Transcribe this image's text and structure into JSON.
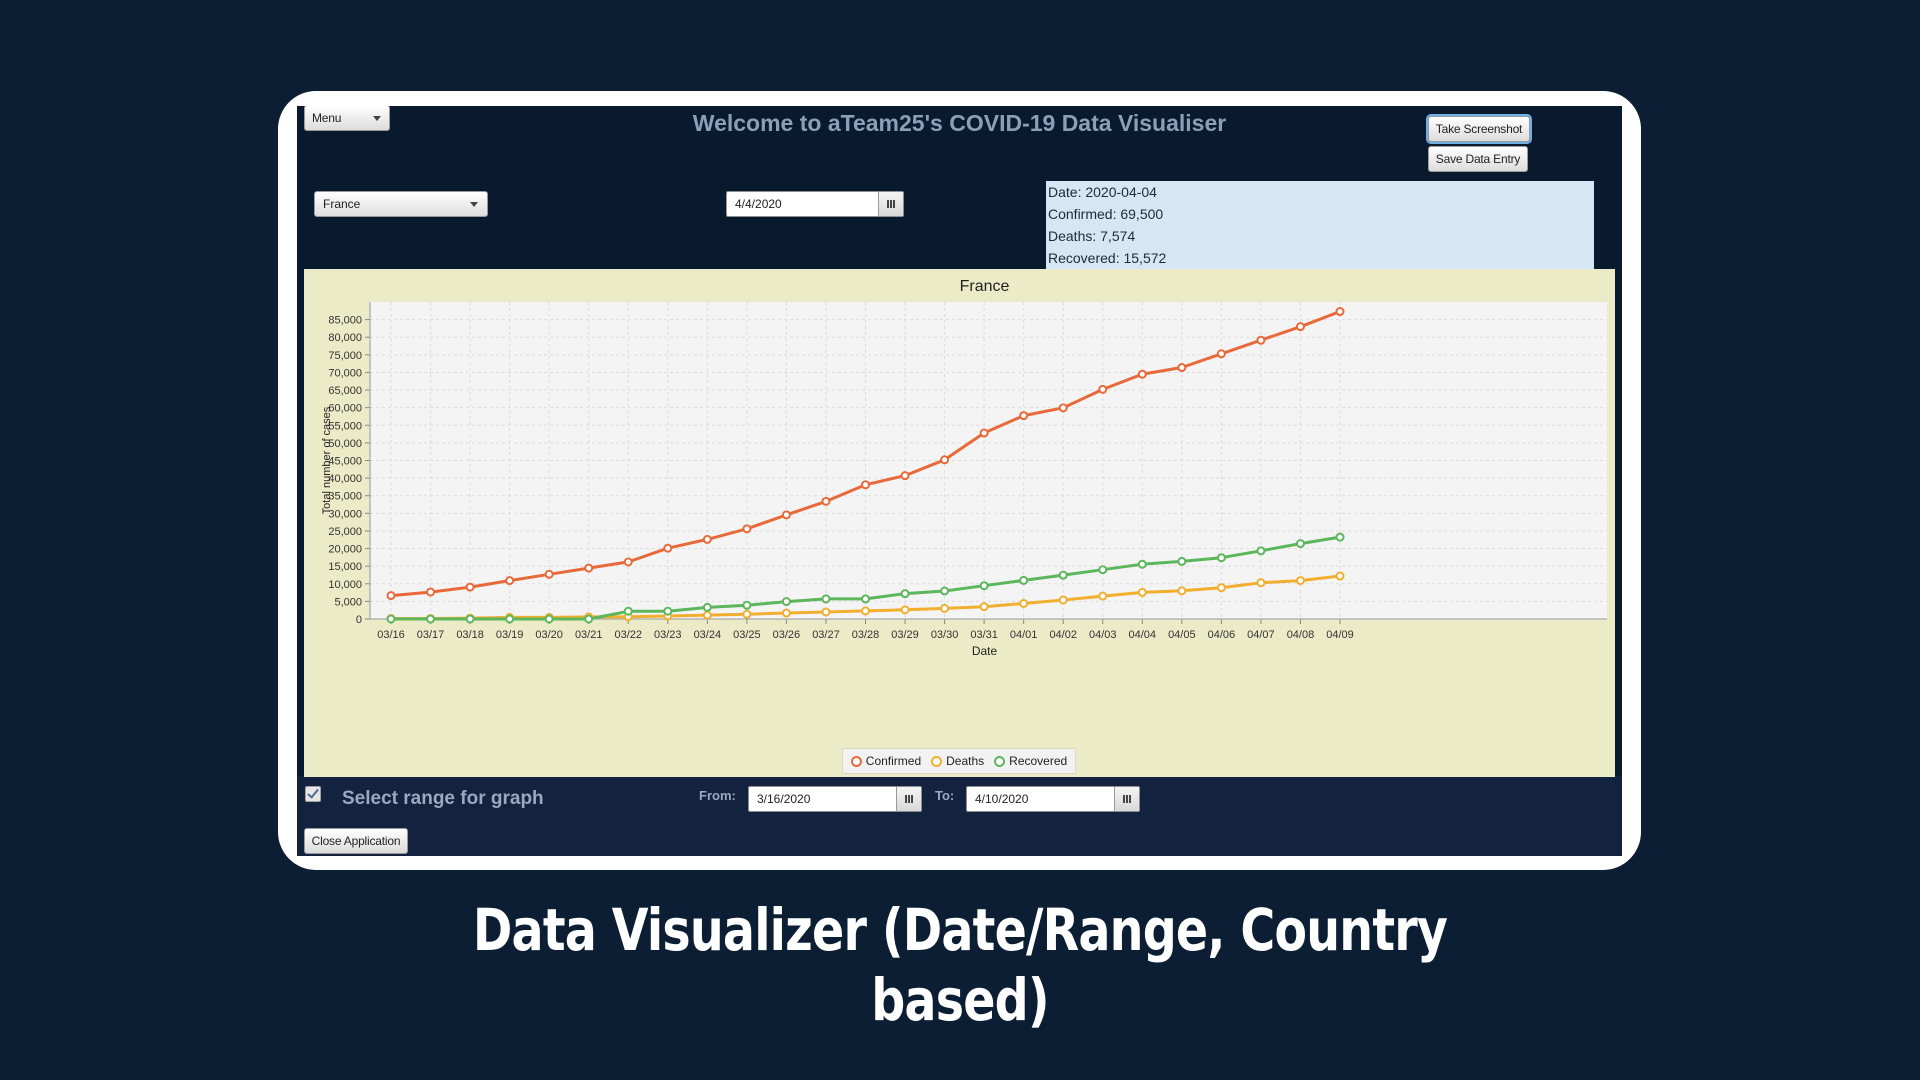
{
  "app": {
    "title": "Welcome to aTeam25's COVID-19 Data Visualiser",
    "menu_label": "Menu",
    "take_screenshot_label": "Take Screenshot",
    "save_data_entry_label": "Save Data Entry",
    "country_selected": "France",
    "date_value": "4/4/2020",
    "info": {
      "date": "Date: 2020-04-04",
      "confirmed": "Confirmed: 69,500",
      "deaths": "Deaths: 7,574",
      "recovered": "Recovered: 15,572"
    },
    "range_checkbox_label": "Select range for graph",
    "range_checked": true,
    "from_label": "From:",
    "from_value": "3/16/2020",
    "to_label": "To:",
    "to_value": "4/10/2020",
    "close_label": "Close Application"
  },
  "caption": {
    "line1": "Data Visualizer (Date/Range, Country",
    "line2": "based)"
  },
  "colors": {
    "confirmed": "#e8693a",
    "deaths": "#f2ae2f",
    "recovered": "#5cb65c"
  },
  "chart_data": {
    "type": "line",
    "title": "France",
    "xlabel": "Date",
    "ylabel": "Total number of cases",
    "ylim": [
      0,
      90000
    ],
    "yticks": [
      0,
      5000,
      10000,
      15000,
      20000,
      25000,
      30000,
      35000,
      40000,
      45000,
      50000,
      55000,
      60000,
      65000,
      70000,
      75000,
      80000,
      85000
    ],
    "ytick_labels": [
      "0",
      "5,000",
      "10,000",
      "15,000",
      "20,000",
      "25,000",
      "30,000",
      "35,000",
      "40,000",
      "45,000",
      "50,000",
      "55,000",
      "60,000",
      "65,000",
      "70,000",
      "75,000",
      "80,000",
      "85,000"
    ],
    "grid": true,
    "legend_position": "bottom-center",
    "categories": [
      "03/16",
      "03/17",
      "03/18",
      "03/19",
      "03/20",
      "03/21",
      "03/22",
      "03/23",
      "03/24",
      "03/25",
      "03/26",
      "03/27",
      "03/28",
      "03/29",
      "03/30",
      "03/31",
      "04/01",
      "04/02",
      "04/03",
      "04/04",
      "04/05",
      "04/06",
      "04/07",
      "04/08",
      "04/09"
    ],
    "series": [
      {
        "name": "Confirmed",
        "values": [
          6650,
          7650,
          9050,
          10900,
          12700,
          14450,
          16200,
          20100,
          22600,
          25600,
          29550,
          33400,
          38100,
          40700,
          45200,
          52800,
          57750,
          59950,
          65200,
          69500,
          71400,
          75300,
          79150,
          83000,
          87300
        ]
      },
      {
        "name": "Deaths",
        "values": [
          150,
          150,
          250,
          450,
          450,
          600,
          650,
          850,
          1100,
          1350,
          1700,
          2000,
          2300,
          2600,
          3000,
          3500,
          4400,
          5400,
          6500,
          7550,
          8000,
          8900,
          10300,
          10900,
          12200
        ]
      },
      {
        "name": "Recovered",
        "values": [
          0,
          0,
          0,
          0,
          0,
          0,
          2200,
          2200,
          3300,
          3900,
          4950,
          5700,
          5700,
          7200,
          7950,
          9450,
          10950,
          12450,
          14000,
          15550,
          16350,
          17400,
          19350,
          21400,
          23250
        ]
      }
    ]
  }
}
